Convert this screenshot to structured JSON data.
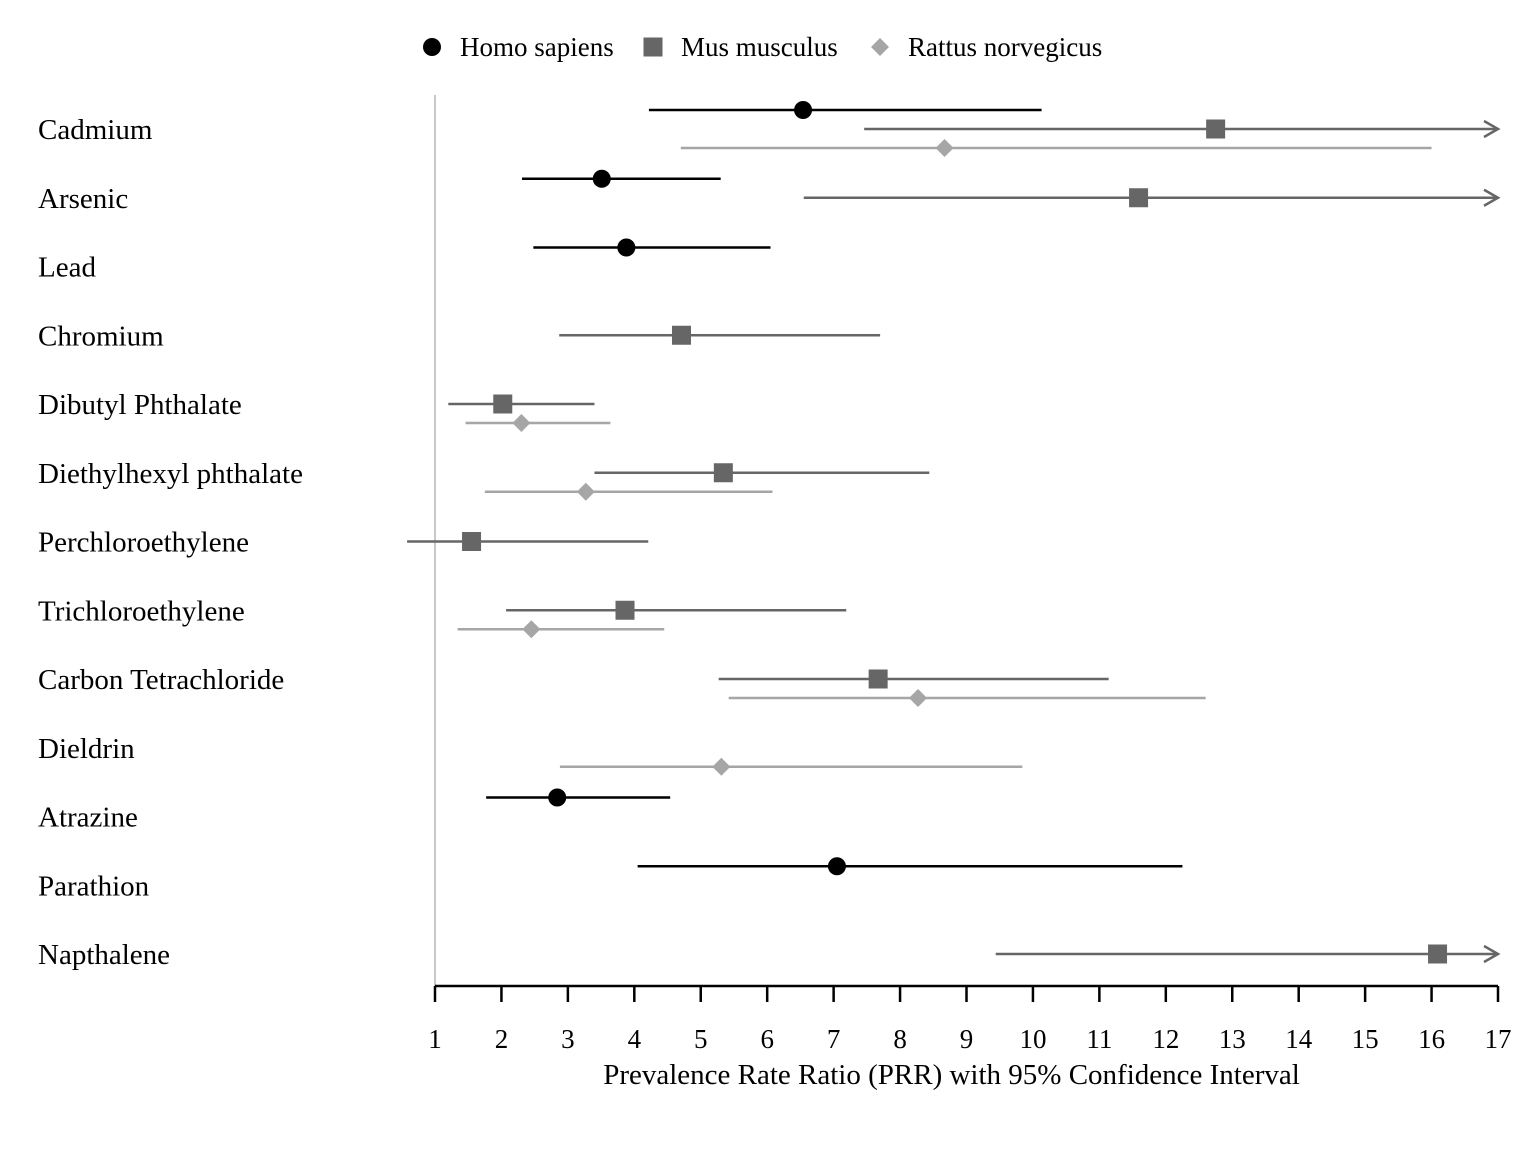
{
  "chart_data": {
    "type": "forest",
    "xlabel": "Prevalence Rate Ratio (PRR) with 95% Confidence Interval",
    "xlim": [
      1,
      17
    ],
    "xticks": [
      1,
      2,
      3,
      4,
      5,
      6,
      7,
      8,
      9,
      10,
      11,
      12,
      13,
      14,
      15,
      16,
      17
    ],
    "reference_line": 1,
    "legend_position": "top-center",
    "categories": [
      "Cadmium",
      "Arsenic",
      "Lead",
      "Chromium",
      "Dibutyl Phthalate",
      "Diethylhexyl phthalate",
      "Perchloroethylene",
      "Trichloroethylene",
      "Carbon Tetrachloride",
      "Dieldrin",
      "Atrazine",
      "Parathion",
      "Napthalene"
    ],
    "series": [
      {
        "name": "Homo sapiens",
        "marker": "circle",
        "color": "#000000",
        "points": [
          {
            "category": "Cadmium",
            "estimate": 6.54,
            "lower": 4.22,
            "upper": 10.13,
            "truncated": false
          },
          {
            "category": "Arsenic",
            "estimate": 3.51,
            "lower": 2.31,
            "upper": 5.3,
            "truncated": false
          },
          {
            "category": "Lead",
            "estimate": 3.88,
            "lower": 2.48,
            "upper": 6.05,
            "truncated": false
          },
          {
            "category": "Atrazine",
            "estimate": 2.84,
            "lower": 1.77,
            "upper": 4.54,
            "truncated": false
          },
          {
            "category": "Parathion",
            "estimate": 7.05,
            "lower": 4.05,
            "upper": 12.25,
            "truncated": false
          }
        ]
      },
      {
        "name": "Mus musculus",
        "marker": "square",
        "color": "#666666",
        "points": [
          {
            "category": "Cadmium",
            "estimate": 12.75,
            "lower": 7.46,
            "upper": 17.0,
            "truncated": true
          },
          {
            "category": "Arsenic",
            "estimate": 11.59,
            "lower": 6.55,
            "upper": 17.0,
            "truncated": true
          },
          {
            "category": "Chromium",
            "estimate": 4.71,
            "lower": 2.87,
            "upper": 7.7,
            "truncated": false
          },
          {
            "category": "Dibutyl Phthalate",
            "estimate": 2.02,
            "lower": 1.2,
            "upper": 3.4,
            "truncated": false
          },
          {
            "category": "Diethylhexyl phthalate",
            "estimate": 5.34,
            "lower": 3.4,
            "upper": 8.44,
            "truncated": false
          },
          {
            "category": "Perchloroethylene",
            "estimate": 1.55,
            "lower": 0.58,
            "upper": 4.21,
            "truncated": false
          },
          {
            "category": "Trichloroethylene",
            "estimate": 3.86,
            "lower": 2.07,
            "upper": 7.19,
            "truncated": false
          },
          {
            "category": "Carbon Tetrachloride",
            "estimate": 7.67,
            "lower": 5.27,
            "upper": 11.14,
            "truncated": false
          },
          {
            "category": "Napthalene",
            "estimate": 16.09,
            "lower": 9.44,
            "upper": 17.0,
            "truncated": true
          }
        ]
      },
      {
        "name": "Rattus norvegicus",
        "marker": "diamond",
        "color": "#a6a6a6",
        "points": [
          {
            "category": "Cadmium",
            "estimate": 8.67,
            "lower": 4.7,
            "upper": 16.0,
            "truncated": false
          },
          {
            "category": "Dibutyl Phthalate",
            "estimate": 2.3,
            "lower": 1.46,
            "upper": 3.64,
            "truncated": false
          },
          {
            "category": "Diethylhexyl phthalate",
            "estimate": 3.27,
            "lower": 1.75,
            "upper": 6.08,
            "truncated": false
          },
          {
            "category": "Trichloroethylene",
            "estimate": 2.45,
            "lower": 1.34,
            "upper": 4.45,
            "truncated": false
          },
          {
            "category": "Carbon Tetrachloride",
            "estimate": 8.27,
            "lower": 5.42,
            "upper": 12.6,
            "truncated": false
          },
          {
            "category": "Dieldrin",
            "estimate": 5.31,
            "lower": 2.88,
            "upper": 9.84,
            "truncated": false
          }
        ]
      }
    ]
  }
}
